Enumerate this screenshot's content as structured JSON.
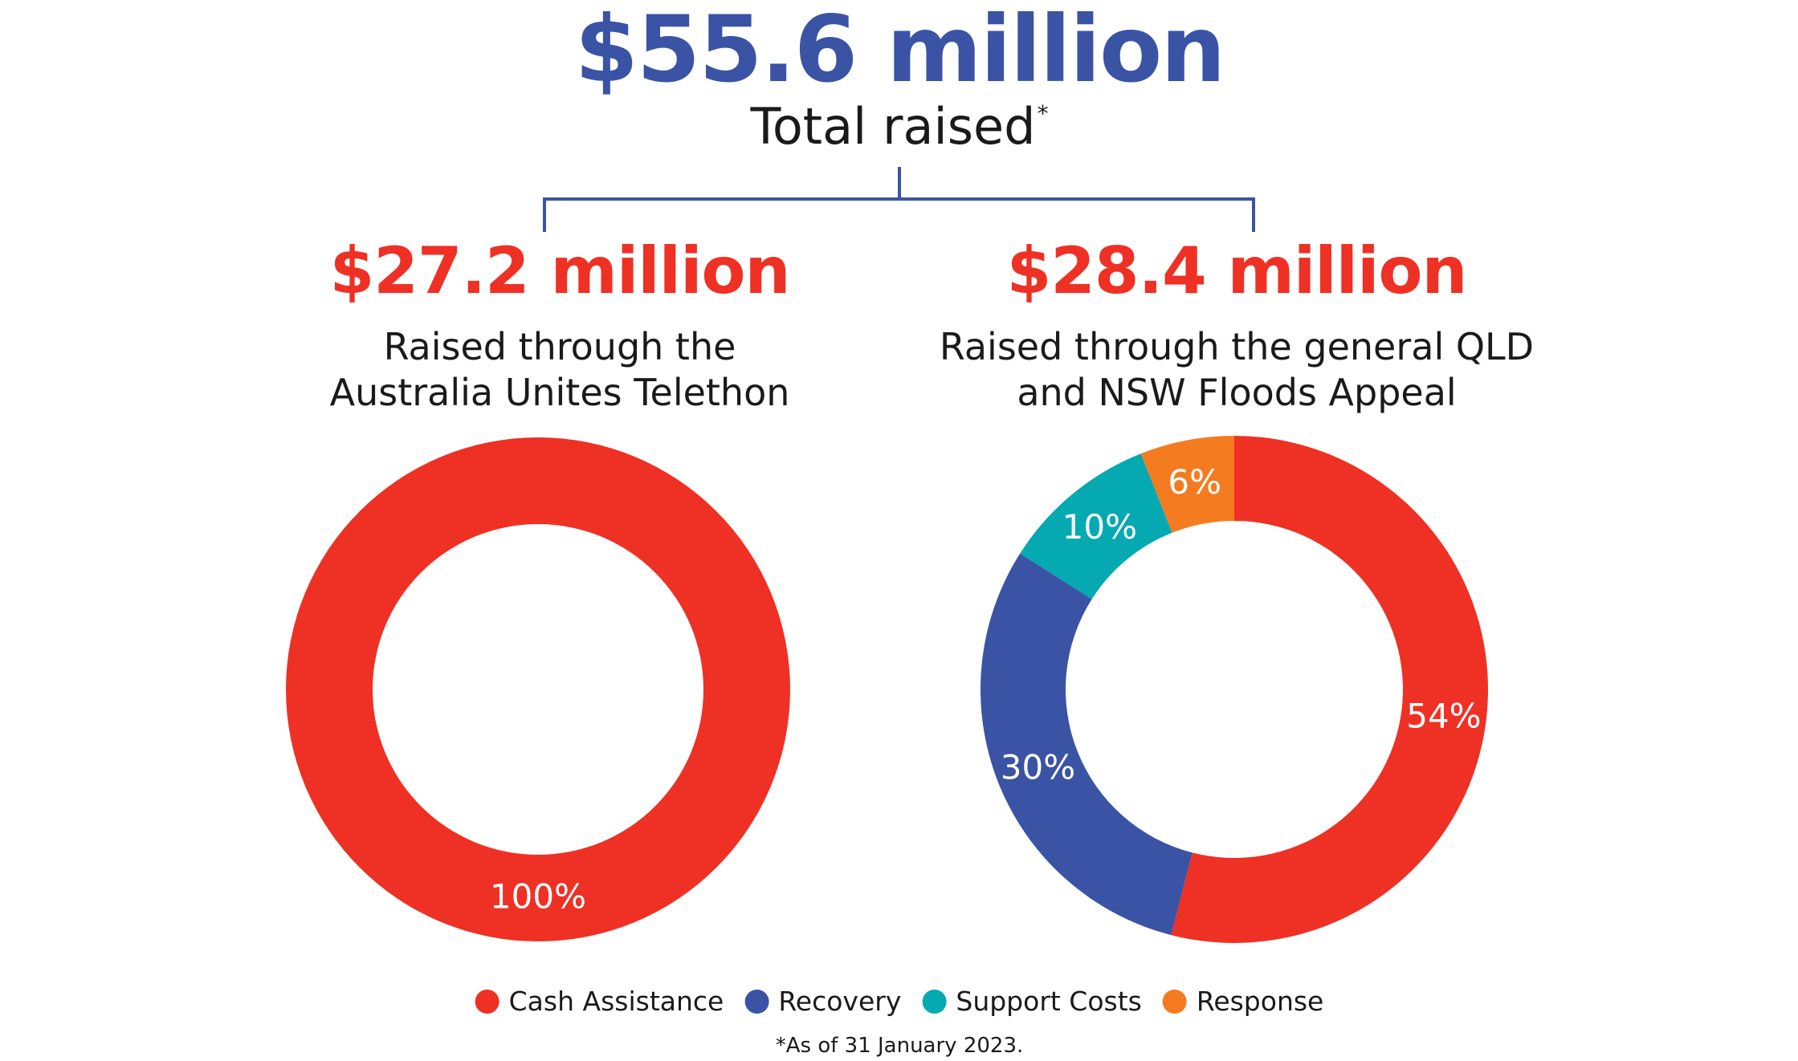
{
  "header": {
    "total_amount": "$55.6 million",
    "total_label": "Total raised",
    "total_label_mark": "*"
  },
  "colors": {
    "navy": "#3a53a4",
    "red": "#ee3124",
    "teal": "#05a9b1",
    "orange": "#f47b20",
    "white": "#ffffff"
  },
  "left": {
    "amount": "$27.2 million",
    "desc_line1": "Raised through the",
    "desc_line2": "Australia Unites Telethon"
  },
  "right": {
    "amount": "$28.4 million",
    "desc_line1": "Raised through the general QLD",
    "desc_line2": "and NSW Floods Appeal"
  },
  "chart_data": [
    {
      "type": "pie",
      "title": "",
      "donut": true,
      "series": [
        {
          "name": "Cash Assistance",
          "value": 100,
          "label": "100%",
          "color": "#ee3124"
        }
      ]
    },
    {
      "type": "pie",
      "title": "",
      "donut": true,
      "series": [
        {
          "name": "Cash Assistance",
          "value": 54,
          "label": "54%",
          "color": "#ee3124"
        },
        {
          "name": "Recovery",
          "value": 30,
          "label": "30%",
          "color": "#3a53a4"
        },
        {
          "name": "Support Costs",
          "value": 10,
          "label": "10%",
          "color": "#05a9b1"
        },
        {
          "name": "Response",
          "value": 6,
          "label": "6%",
          "color": "#f47b20"
        }
      ]
    }
  ],
  "legend": {
    "items": [
      {
        "label": "Cash Assistance",
        "color": "#ee3124"
      },
      {
        "label": "Recovery",
        "color": "#3a53a4"
      },
      {
        "label": "Support Costs",
        "color": "#05a9b1"
      },
      {
        "label": "Response",
        "color": "#f47b20"
      }
    ]
  },
  "footnote": "*As of 31 January 2023."
}
